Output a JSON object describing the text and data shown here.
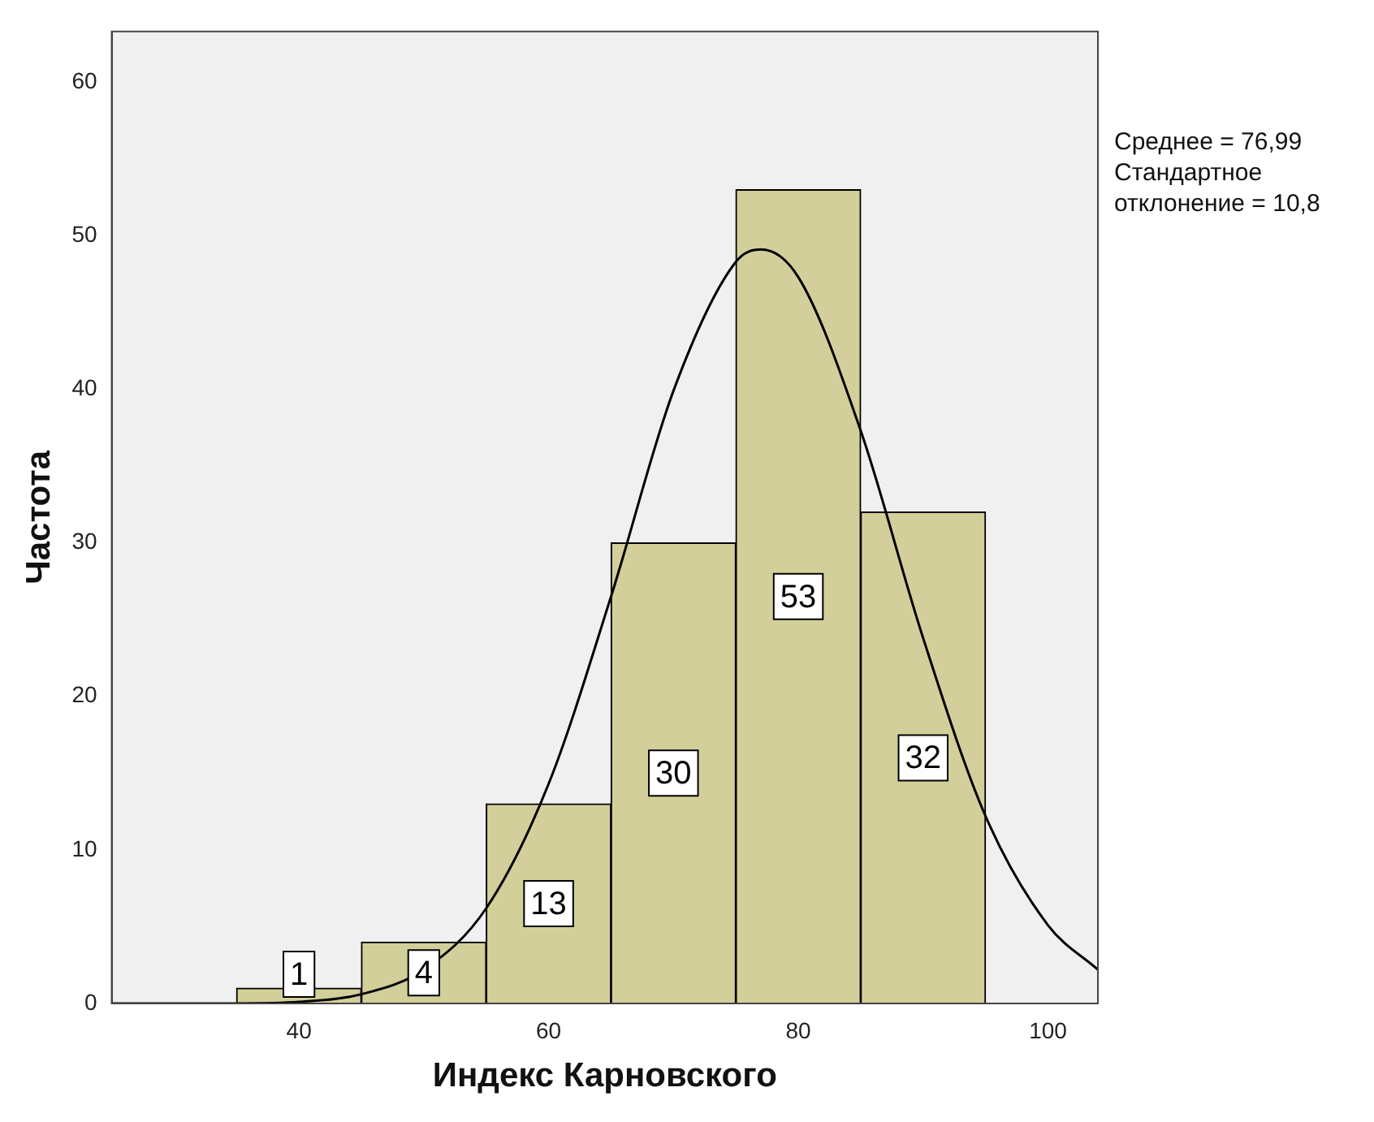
{
  "chart_data": {
    "type": "histogram",
    "xlabel": "Индекс Карновского",
    "ylabel": "Частота",
    "bins": [
      35,
      45,
      55,
      65,
      75,
      85,
      95
    ],
    "values": [
      1,
      4,
      13,
      30,
      53,
      32
    ],
    "color": "#d3cf9a",
    "value_labels": [
      "1",
      "4",
      "13",
      "30",
      "53",
      "32"
    ],
    "xlim": [
      25,
      104
    ],
    "xticks": [
      40,
      60,
      80,
      100
    ],
    "ylim": [
      0,
      63.3
    ],
    "yticks": [
      0,
      10,
      20,
      30,
      40,
      50,
      60
    ],
    "series": [
      {
        "type": "line",
        "color": "#000000",
        "marker": "none",
        "x": [
          25,
          35,
          40,
          45,
          50,
          55,
          60,
          65,
          70,
          75,
          77,
          80,
          85,
          90,
          95,
          100,
          104
        ],
        "values": [
          0,
          0,
          0.1,
          0.6,
          2.2,
          6.2,
          14.3,
          26.5,
          39.9,
          48.3,
          49.1,
          47.3,
          37.3,
          23.8,
          12.2,
          5.1,
          2.2
        ]
      }
    ],
    "annotations": [
      "Среднее = 76,99",
      "Стандартное отклонение = 10,8"
    ],
    "legend": false,
    "grid": false
  }
}
